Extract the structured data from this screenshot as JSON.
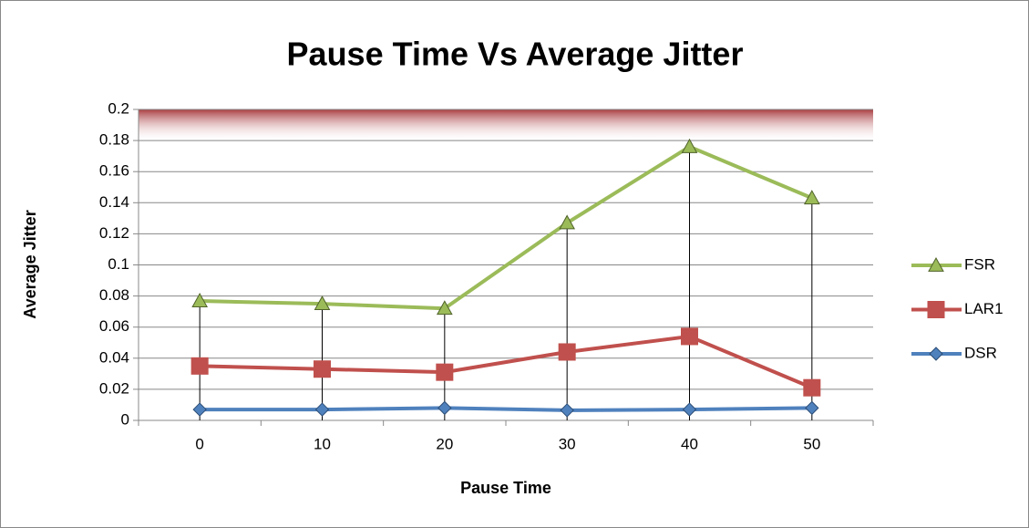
{
  "chart_data": {
    "type": "line",
    "title": "Pause Time Vs Average Jitter",
    "x_label": "Pause Time",
    "y_label": "Average Jitter",
    "categories": [
      "0",
      "10",
      "20",
      "30",
      "40",
      "50"
    ],
    "series": [
      {
        "name": "FSR",
        "color": "#9bbb59",
        "marker": "triangle",
        "values": [
          0.0768,
          0.075,
          0.072,
          0.127,
          0.176,
          0.143
        ]
      },
      {
        "name": "LAR1",
        "color": "#c0504d",
        "marker": "square",
        "values": [
          0.035,
          0.033,
          0.031,
          0.044,
          0.054,
          0.021
        ]
      },
      {
        "name": "DSR",
        "color": "#4f81bd",
        "marker": "diamond",
        "values": [
          0.007,
          0.007,
          0.008,
          0.0065,
          0.007,
          0.008
        ]
      }
    ],
    "ylim": [
      0,
      0.2
    ],
    "yticks": [
      0,
      0.02,
      0.04,
      0.06,
      0.08,
      0.1,
      0.12,
      0.14,
      0.16,
      0.18,
      0.2
    ],
    "grid": true,
    "legend": "right",
    "drop_lines": true
  }
}
